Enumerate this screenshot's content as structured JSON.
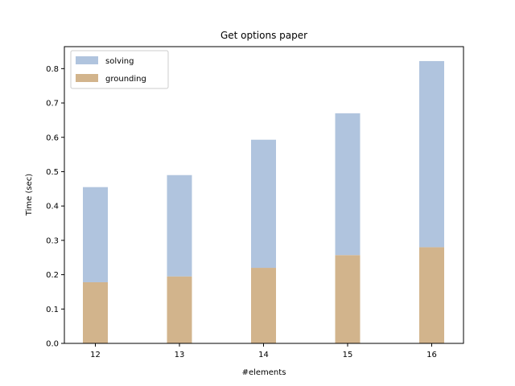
{
  "chart_data": {
    "type": "bar",
    "stacked": true,
    "title": "Get options paper",
    "xlabel": "#elements",
    "ylabel": "Time (sec)",
    "categories": [
      "12",
      "13",
      "14",
      "15",
      "16"
    ],
    "series": [
      {
        "name": "grounding",
        "values": [
          0.178,
          0.195,
          0.22,
          0.257,
          0.28
        ],
        "color": "#d2b48c"
      },
      {
        "name": "solving",
        "values": [
          0.277,
          0.295,
          0.373,
          0.413,
          0.542
        ],
        "color": "#b0c4de"
      }
    ],
    "ylim": [
      0,
      0.864
    ],
    "yticks": [
      "0.0",
      "0.1",
      "0.2",
      "0.3",
      "0.4",
      "0.5",
      "0.6",
      "0.7",
      "0.8"
    ],
    "legend": {
      "position": "top-left",
      "entries": [
        "solving",
        "grounding"
      ]
    },
    "grid": false
  }
}
